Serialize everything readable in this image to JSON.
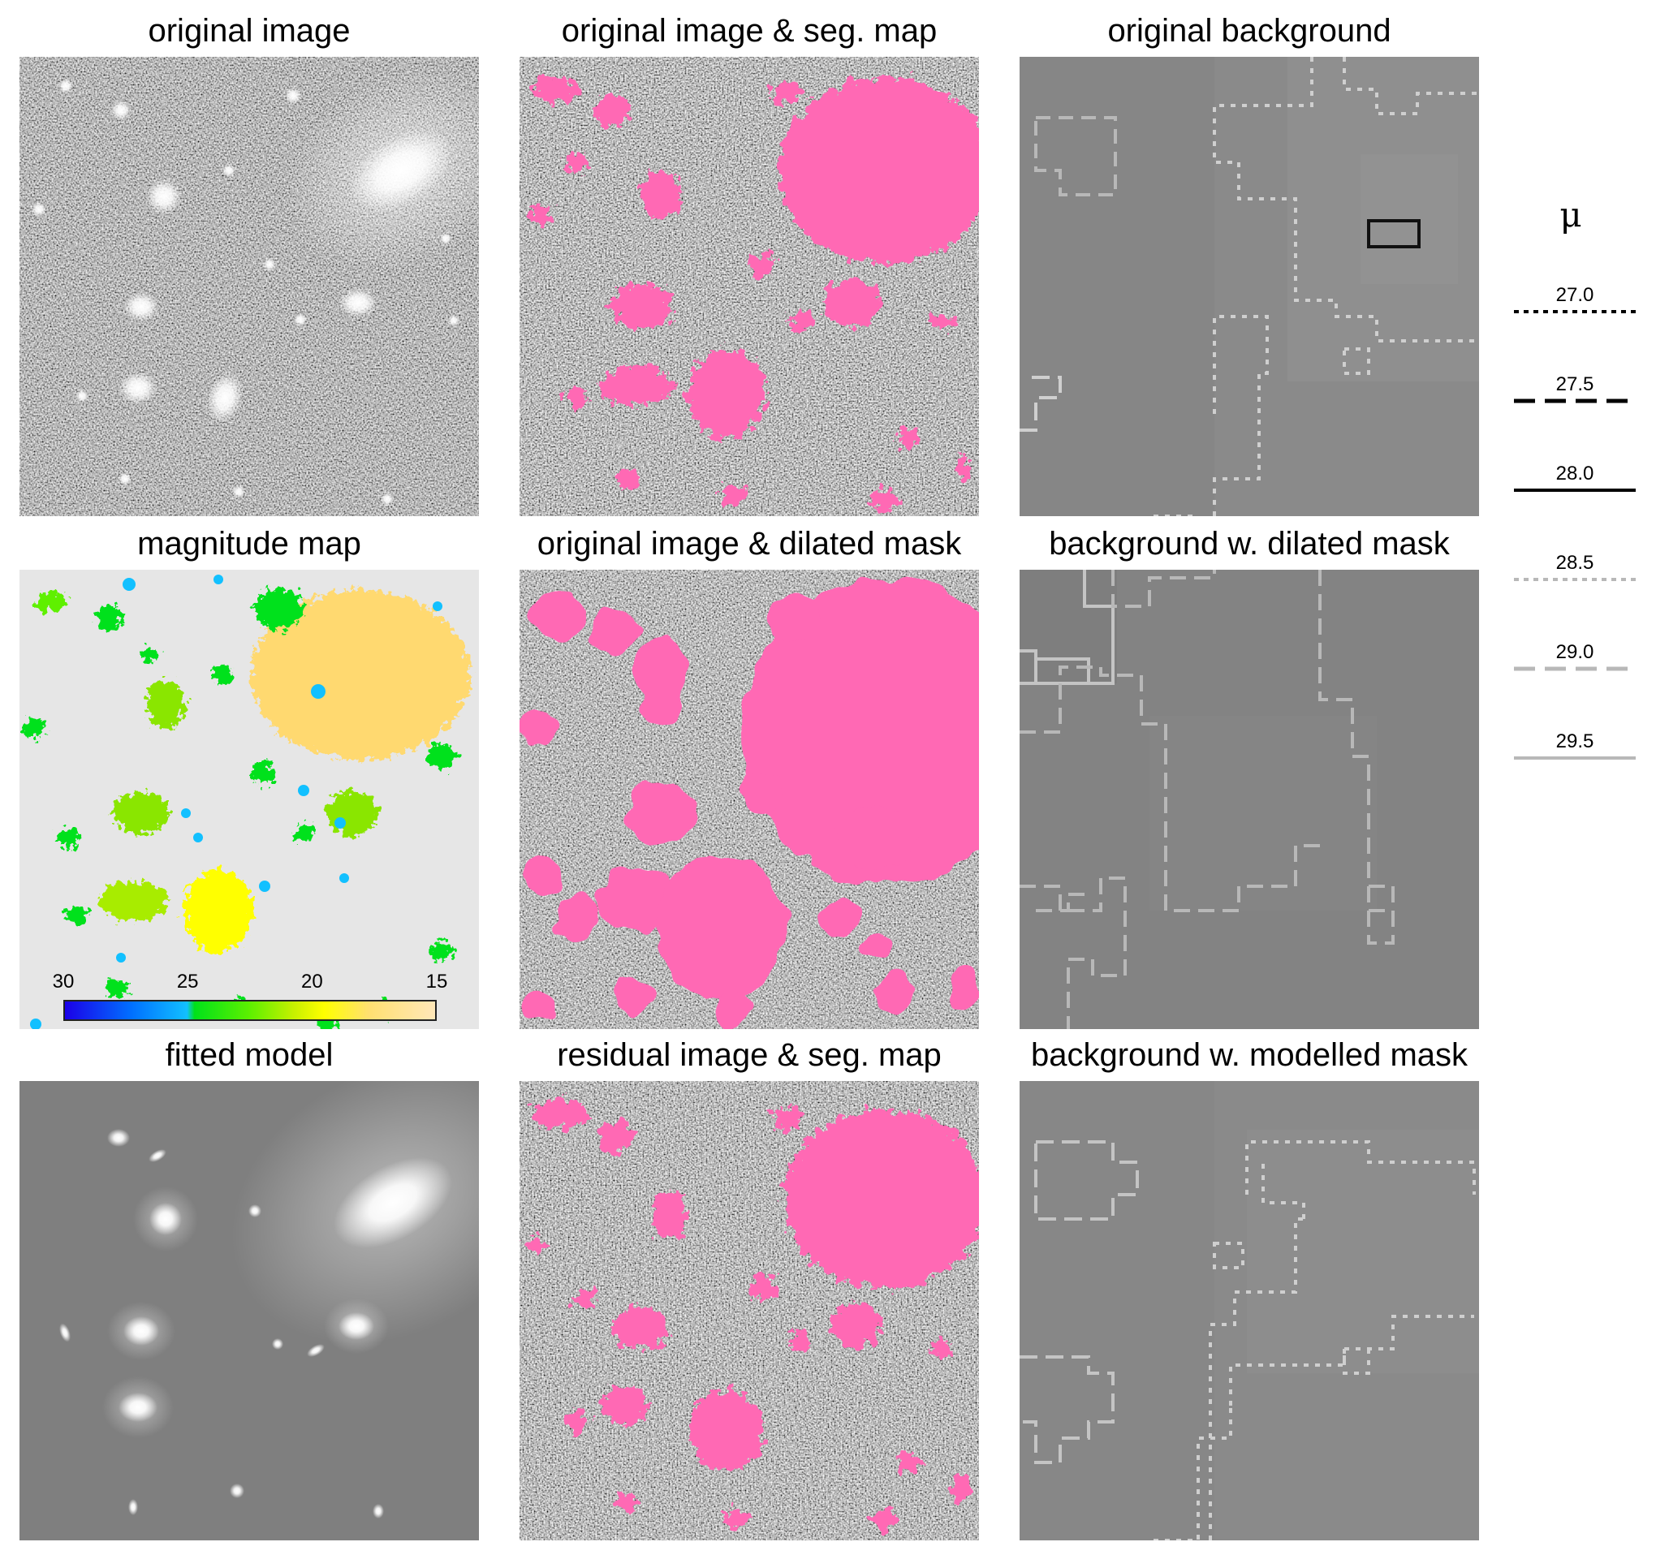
{
  "panels": [
    {
      "id": "p1",
      "title": "original image"
    },
    {
      "id": "p2",
      "title": "original image & seg. map"
    },
    {
      "id": "p3",
      "title": "original background"
    },
    {
      "id": "p4",
      "title": "magnitude map"
    },
    {
      "id": "p5",
      "title": "original image & dilated mask"
    },
    {
      "id": "p6",
      "title": "background w. dilated mask"
    },
    {
      "id": "p7",
      "title": "fitted model"
    },
    {
      "id": "p8",
      "title": "residual image & seg. map"
    },
    {
      "id": "p9",
      "title": "background w. modelled mask"
    }
  ],
  "colorbar": {
    "ticks": [
      "30",
      "25",
      "20",
      "15"
    ],
    "colors": [
      "#1b00e8",
      "#12c0ff",
      "#00e11a",
      "#ffff00",
      "#ffe7b8"
    ]
  },
  "legend": {
    "symbol": "μ",
    "items": [
      {
        "value": "27.0",
        "style": "dotted",
        "color": "#000000"
      },
      {
        "value": "27.5",
        "style": "dashed",
        "color": "#000000"
      },
      {
        "value": "28.0",
        "style": "solid",
        "color": "#000000"
      },
      {
        "value": "28.5",
        "style": "dotted",
        "color": "#b8b8b8"
      },
      {
        "value": "29.0",
        "style": "dashed",
        "color": "#b8b8b8"
      },
      {
        "value": "29.5",
        "style": "solid",
        "color": "#b8b8b8"
      }
    ]
  },
  "colors": {
    "mask": "#ff69b4",
    "background_gray": "#8c8c8c",
    "magnitude_bg": "#e6e6e6"
  }
}
